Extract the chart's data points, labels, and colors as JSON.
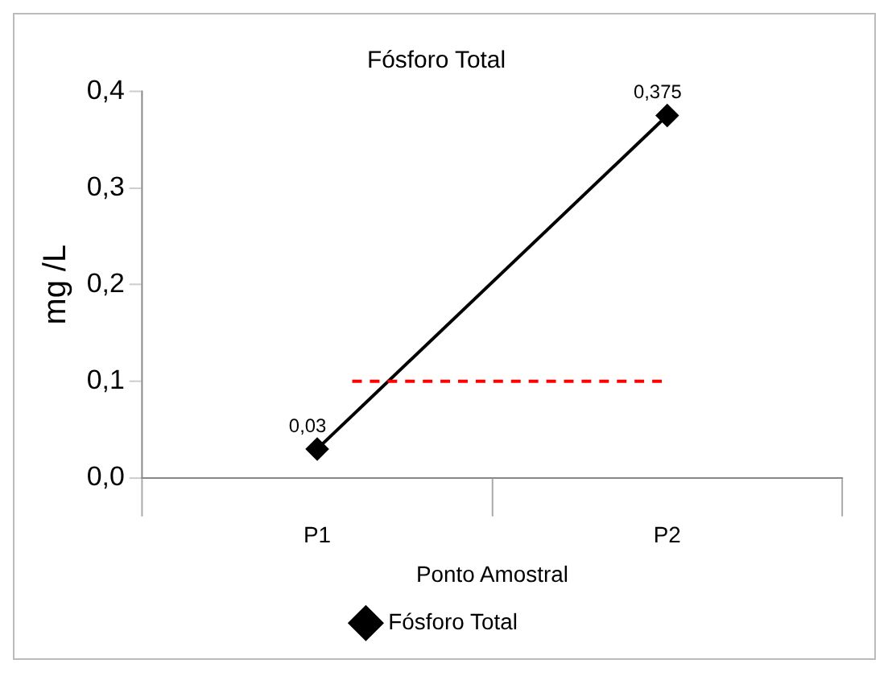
{
  "chart_data": {
    "type": "line",
    "title": "Fósforo Total",
    "xlabel": "Ponto Amostral",
    "ylabel": "mg /L",
    "categories": [
      "P1",
      "P2"
    ],
    "series": [
      {
        "name": "Fósforo Total",
        "color": "#000000",
        "values": [
          0.03,
          0.375
        ],
        "value_labels": [
          "0,03",
          "0,375"
        ]
      }
    ],
    "ylim": [
      0,
      0.4
    ],
    "yticks": [
      {
        "value": 0,
        "label": "0,0"
      },
      {
        "value": 0.1,
        "label": "0,1"
      },
      {
        "value": 0.2,
        "label": "0,2"
      },
      {
        "value": 0.3,
        "label": "0,3"
      },
      {
        "value": 0.4,
        "label": "0,4"
      }
    ],
    "ref_lines": [
      {
        "axis": "y",
        "value": 0.1,
        "color": "#ff0000",
        "line_style": "dashed"
      }
    ],
    "grid": false,
    "legend": "bottom",
    "marker": "diamond",
    "line_style": "solid"
  }
}
